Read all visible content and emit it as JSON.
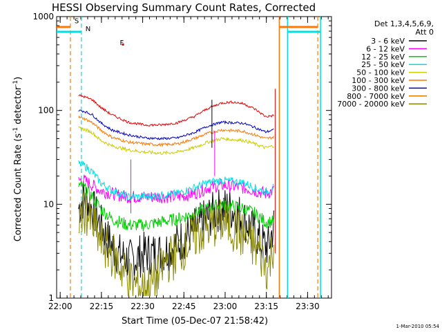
{
  "chart_data": {
    "type": "line",
    "title": "HESSI Observing Summary Count Rates, Corrected",
    "xlabel": "Start Time (05-Dec-07 21:58:42)",
    "ylabel_main": "Corrected Count Rate (s",
    "ylabel_sup1": "-1",
    "ylabel_mid": " detector",
    "ylabel_sup2": "-1",
    "ylabel_end": ")",
    "y_scale": "log",
    "ylim": [
      1,
      1000
    ],
    "xlim_minutes": [
      0,
      100
    ],
    "x_ticks": [
      {
        "min": 1.3,
        "label": "22:00"
      },
      {
        "min": 16.3,
        "label": "22:15"
      },
      {
        "min": 31.3,
        "label": "22:30"
      },
      {
        "min": 46.3,
        "label": "22:45"
      },
      {
        "min": 61.3,
        "label": "23:00"
      },
      {
        "min": 76.3,
        "label": "23:15"
      },
      {
        "min": 91.3,
        "label": "23:30"
      }
    ],
    "y_ticks": [
      {
        "value": 1,
        "label": "1"
      },
      {
        "value": 10,
        "label": "10"
      },
      {
        "value": 100,
        "label": "100"
      },
      {
        "value": 1000,
        "label": "1000"
      }
    ],
    "legend_header_1": "Det 1,3,4,5,6,9,",
    "legend_header_2": "Att 0",
    "legend_position": "right",
    "series": [
      {
        "name": "3 - 6 keV",
        "color": "#000000",
        "base": 6,
        "noise": 0.55,
        "from": 8,
        "to": 79,
        "points": [
          [
            8,
            9
          ],
          [
            10,
            12
          ],
          [
            13,
            9
          ],
          [
            16,
            6
          ],
          [
            19,
            4
          ],
          [
            22,
            3
          ],
          [
            27,
            2.5
          ],
          [
            32,
            3
          ],
          [
            37,
            3
          ],
          [
            42,
            3.5
          ],
          [
            47,
            4.5
          ],
          [
            52,
            6
          ],
          [
            57,
            8
          ],
          [
            60,
            9
          ],
          [
            63,
            9
          ],
          [
            66,
            8
          ],
          [
            70,
            6
          ],
          [
            74,
            4
          ],
          [
            77,
            3.5
          ],
          [
            79,
            6
          ]
        ]
      },
      {
        "name": "6 - 12 keV",
        "color": "#ff00ff",
        "base": 13,
        "noise": 0.16,
        "from": 8,
        "to": 79,
        "points": [
          [
            8,
            18
          ],
          [
            10,
            18
          ],
          [
            13,
            16
          ],
          [
            16,
            14
          ],
          [
            20,
            13
          ],
          [
            26,
            12
          ],
          [
            32,
            12
          ],
          [
            38,
            12
          ],
          [
            44,
            12
          ],
          [
            50,
            13
          ],
          [
            55,
            15
          ],
          [
            60,
            16
          ],
          [
            64,
            15.5
          ],
          [
            68,
            15
          ],
          [
            72,
            14
          ],
          [
            76,
            13
          ],
          [
            79,
            14
          ]
        ]
      },
      {
        "name": "12 - 25 keV",
        "color": "#00cc00",
        "base": 8,
        "noise": 0.16,
        "from": 8,
        "to": 79,
        "points": [
          [
            8,
            16
          ],
          [
            10,
            15
          ],
          [
            13,
            12
          ],
          [
            16,
            9
          ],
          [
            20,
            7
          ],
          [
            26,
            6
          ],
          [
            32,
            6
          ],
          [
            38,
            6.5
          ],
          [
            44,
            7
          ],
          [
            50,
            8
          ],
          [
            55,
            9
          ],
          [
            60,
            10
          ],
          [
            64,
            9.5
          ],
          [
            68,
            9
          ],
          [
            72,
            8
          ],
          [
            76,
            6.5
          ],
          [
            79,
            6.5
          ]
        ]
      },
      {
        "name": "25 - 50 keV",
        "color": "#00e0e0",
        "base": 14,
        "noise": 0.1,
        "from": 8,
        "to": 79,
        "points": [
          [
            8,
            27
          ],
          [
            10,
            26
          ],
          [
            13,
            22
          ],
          [
            16,
            17
          ],
          [
            20,
            14
          ],
          [
            26,
            12
          ],
          [
            32,
            12
          ],
          [
            38,
            12.5
          ],
          [
            44,
            13
          ],
          [
            50,
            15
          ],
          [
            55,
            17
          ],
          [
            60,
            18
          ],
          [
            64,
            17.5
          ],
          [
            68,
            17
          ],
          [
            72,
            15
          ],
          [
            76,
            13.5
          ],
          [
            79,
            15
          ]
        ]
      },
      {
        "name": "50 - 100 keV",
        "color": "#cccc00",
        "base": 45,
        "noise": 0.04,
        "from": 8,
        "to": 79,
        "points": [
          [
            8,
            65
          ],
          [
            10,
            63
          ],
          [
            13,
            58
          ],
          [
            16,
            48
          ],
          [
            20,
            42
          ],
          [
            26,
            38
          ],
          [
            32,
            36
          ],
          [
            38,
            35
          ],
          [
            44,
            36
          ],
          [
            50,
            40
          ],
          [
            55,
            46
          ],
          [
            60,
            50
          ],
          [
            64,
            49
          ],
          [
            68,
            48
          ],
          [
            72,
            44
          ],
          [
            76,
            40
          ],
          [
            79,
            42
          ]
        ]
      },
      {
        "name": "100 - 300 keV",
        "color": "#ff7700",
        "base": 55,
        "noise": 0.035,
        "from": 8,
        "to": 79,
        "points": [
          [
            8,
            85
          ],
          [
            10,
            82
          ],
          [
            13,
            74
          ],
          [
            16,
            62
          ],
          [
            20,
            52
          ],
          [
            26,
            46
          ],
          [
            32,
            44
          ],
          [
            38,
            43
          ],
          [
            44,
            44
          ],
          [
            50,
            50
          ],
          [
            55,
            57
          ],
          [
            60,
            62
          ],
          [
            64,
            61
          ],
          [
            68,
            60
          ],
          [
            72,
            55
          ],
          [
            76,
            50
          ],
          [
            79,
            52
          ]
        ]
      },
      {
        "name": "300 - 800 keV",
        "color": "#0000cc",
        "base": 65,
        "noise": 0.03,
        "from": 8,
        "to": 79,
        "points": [
          [
            8,
            100
          ],
          [
            10,
            98
          ],
          [
            13,
            90
          ],
          [
            16,
            74
          ],
          [
            20,
            62
          ],
          [
            26,
            55
          ],
          [
            32,
            51
          ],
          [
            38,
            50
          ],
          [
            44,
            51
          ],
          [
            50,
            58
          ],
          [
            55,
            68
          ],
          [
            60,
            75
          ],
          [
            64,
            74
          ],
          [
            68,
            73
          ],
          [
            72,
            66
          ],
          [
            76,
            59
          ],
          [
            79,
            62
          ]
        ]
      },
      {
        "name": "800 - 7000 keV",
        "color": "#dd7700",
        "base": 0,
        "noise": 0,
        "from": 0,
        "to": 0,
        "points": []
      },
      {
        "name": "7000 - 20000 keV",
        "color": "#888800",
        "base": 5,
        "noise": 0.6,
        "from": 8,
        "to": 79,
        "points": [
          [
            8,
            7
          ],
          [
            10,
            9
          ],
          [
            13,
            6
          ],
          [
            16,
            4
          ],
          [
            20,
            3
          ],
          [
            24,
            2
          ],
          [
            28,
            1.4
          ],
          [
            32,
            1.3
          ],
          [
            36,
            1.5
          ],
          [
            40,
            2.5
          ],
          [
            44,
            3
          ],
          [
            48,
            4
          ],
          [
            52,
            5
          ],
          [
            57,
            6
          ],
          [
            60,
            6.5
          ],
          [
            63,
            6
          ],
          [
            66,
            5
          ],
          [
            70,
            4
          ],
          [
            74,
            3
          ],
          [
            77,
            2
          ],
          [
            79,
            4
          ]
        ]
      },
      {
        "name": "red-top",
        "color": "#ee0000",
        "base": 90,
        "noise": 0.03,
        "from": 8,
        "to": 79,
        "hidden_legend": true,
        "points": [
          [
            8,
            145
          ],
          [
            10,
            140
          ],
          [
            13,
            130
          ],
          [
            16,
            108
          ],
          [
            20,
            90
          ],
          [
            26,
            75
          ],
          [
            32,
            70
          ],
          [
            38,
            70
          ],
          [
            44,
            74
          ],
          [
            50,
            86
          ],
          [
            55,
            105
          ],
          [
            60,
            120
          ],
          [
            64,
            123
          ],
          [
            68,
            118
          ],
          [
            72,
            104
          ],
          [
            76,
            86
          ],
          [
            79,
            88
          ]
        ]
      }
    ],
    "annotations": [
      {
        "type": "dashed-vline",
        "min": 5,
        "color": "#ff7700"
      },
      {
        "type": "dashed-vline",
        "min": 9,
        "color": "#00e0e0"
      },
      {
        "type": "dashed-vline",
        "min": 95,
        "color": "#ff7700"
      },
      {
        "type": "solid-vline",
        "min": 81,
        "color": "#ff7700"
      },
      {
        "type": "solid-vline",
        "min": 84,
        "color": "#00e0e0"
      },
      {
        "type": "solid-vline",
        "min": 96,
        "color": "#00e0e0"
      },
      {
        "type": "text",
        "label": "S",
        "min": 6.5,
        "value": 850,
        "color": "#ff7700"
      },
      {
        "type": "text",
        "label": "N",
        "min": 10.5,
        "value": 700,
        "color": "#00e0e0"
      },
      {
        "type": "text",
        "label": "F",
        "min": 23,
        "value": 500,
        "color": "#cc0000"
      }
    ],
    "footer": "1-Mar-2010 05:54"
  }
}
